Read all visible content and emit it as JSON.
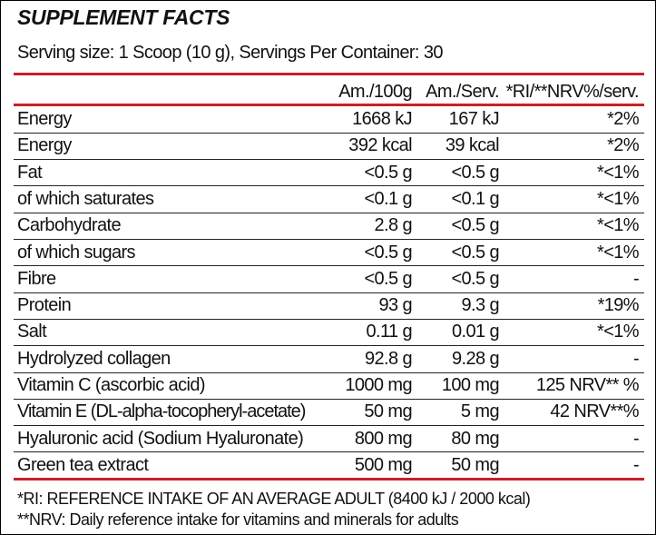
{
  "header": {
    "title": "SUPPLEMENT FACTS",
    "serving": "Serving size: 1 Scoop (10 g), Servings Per Container: 30"
  },
  "table": {
    "columns": [
      "Am./100g",
      "Am./Serv.",
      "*RI/**NRV%/serv."
    ],
    "rows": [
      [
        "Energy",
        "1668 kJ",
        "167 kJ",
        "*2%"
      ],
      [
        "Energy",
        "392 kcal",
        "39 kcal",
        "*2%"
      ],
      [
        "Fat",
        "<0.5 g",
        "<0.5 g",
        "*<1%"
      ],
      [
        "of which saturates",
        "<0.1 g",
        "<0.1 g",
        "*<1%"
      ],
      [
        "Carbohydrate",
        "2.8 g",
        "<0.5 g",
        "*<1%"
      ],
      [
        "of which sugars",
        "<0.5 g",
        "<0.5 g",
        "*<1%"
      ],
      [
        "Fibre",
        "<0.5 g",
        "<0.5 g",
        "-"
      ],
      [
        "Protein",
        "93 g",
        "9.3 g",
        "*19%"
      ],
      [
        "Salt",
        "0.11 g",
        "0.01 g",
        "*<1%"
      ],
      [
        "Hydrolyzed collagen",
        "92.8 g",
        "9.28 g",
        "-"
      ],
      [
        "Vitamin C (ascorbic acid)",
        "1000 mg",
        "100 mg",
        "125 NRV** %"
      ],
      [
        "Vitamin E (DL-alpha-tocopheryl-acetate)",
        "50 mg",
        "5 mg",
        "42 NRV**%"
      ],
      [
        "Hyaluronic acid (Sodium Hyaluronate)",
        "800 mg",
        "80 mg",
        "-"
      ],
      [
        "Green tea extract",
        "500 mg",
        "50 mg",
        "-"
      ]
    ]
  },
  "footnotes": [
    "*RI: REFERENCE INTAKE OF AN AVERAGE ADULT (8400 kJ / 2000 kcal)",
    "**NRV: Daily reference intake for vitamins and minerals for adults"
  ]
}
